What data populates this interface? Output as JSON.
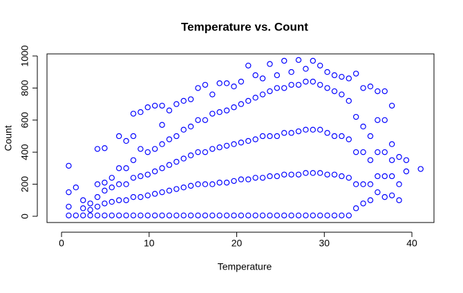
{
  "chart_data": {
    "type": "scatter",
    "title": "Temperature vs. Count",
    "xlabel": "Temperature",
    "ylabel": "Count",
    "color": "#0000ff",
    "xlim": [
      -1.66,
      42.52
    ],
    "ylim": [
      -39,
      1013
    ],
    "xticks": [
      0,
      10,
      20,
      30,
      40
    ],
    "yticks": [
      0,
      200,
      400,
      600,
      800,
      1000
    ],
    "x": [
      0.82,
      0.82,
      0.82,
      0.82,
      1.64,
      1.64,
      2.46,
      2.46,
      2.46,
      3.28,
      3.28,
      3.28,
      4.1,
      4.1,
      4.1,
      4.1,
      4.1,
      4.92,
      4.92,
      4.92,
      4.92,
      4.92,
      5.74,
      5.74,
      5.74,
      5.74,
      6.56,
      6.56,
      6.56,
      6.56,
      6.56,
      7.38,
      7.38,
      7.38,
      7.38,
      7.38,
      8.2,
      8.2,
      8.2,
      8.2,
      8.2,
      8.2,
      9.02,
      9.02,
      9.02,
      9.02,
      9.02,
      9.84,
      9.84,
      9.84,
      9.84,
      9.84,
      10.66,
      10.66,
      10.66,
      10.66,
      10.66,
      11.48,
      11.48,
      11.48,
      11.48,
      11.48,
      11.48,
      12.3,
      12.3,
      12.3,
      12.3,
      12.3,
      13.12,
      13.12,
      13.12,
      13.12,
      13.12,
      13.94,
      13.94,
      13.94,
      13.94,
      13.94,
      14.76,
      14.76,
      14.76,
      14.76,
      14.76,
      15.58,
      15.58,
      15.58,
      15.58,
      15.58,
      16.4,
      16.4,
      16.4,
      16.4,
      16.4,
      17.22,
      17.22,
      17.22,
      17.22,
      17.22,
      18.04,
      18.04,
      18.04,
      18.04,
      18.04,
      18.86,
      18.86,
      18.86,
      18.86,
      18.86,
      19.68,
      19.68,
      19.68,
      19.68,
      19.68,
      20.5,
      20.5,
      20.5,
      20.5,
      20.5,
      21.32,
      21.32,
      21.32,
      21.32,
      21.32,
      22.14,
      22.14,
      22.14,
      22.14,
      22.14,
      22.96,
      22.96,
      22.96,
      22.96,
      22.96,
      23.78,
      23.78,
      23.78,
      23.78,
      23.78,
      24.6,
      24.6,
      24.6,
      24.6,
      24.6,
      25.42,
      25.42,
      25.42,
      25.42,
      25.42,
      26.24,
      26.24,
      26.24,
      26.24,
      26.24,
      27.06,
      27.06,
      27.06,
      27.06,
      27.06,
      27.88,
      27.88,
      27.88,
      27.88,
      27.88,
      28.7,
      28.7,
      28.7,
      28.7,
      28.7,
      29.52,
      29.52,
      29.52,
      29.52,
      29.52,
      30.34,
      30.34,
      30.34,
      30.34,
      30.34,
      31.16,
      31.16,
      31.16,
      31.16,
      31.16,
      31.98,
      31.98,
      31.98,
      31.98,
      31.98,
      32.8,
      32.8,
      32.8,
      32.8,
      32.8,
      33.62,
      33.62,
      33.62,
      33.62,
      33.62,
      34.44,
      34.44,
      34.44,
      34.44,
      34.44,
      35.26,
      35.26,
      35.26,
      35.26,
      35.26,
      36.08,
      36.08,
      36.08,
      36.08,
      36.08,
      36.9,
      36.9,
      36.9,
      36.9,
      36.9,
      37.72,
      37.72,
      37.72,
      37.72,
      37.72,
      38.54,
      38.54,
      38.54,
      39.36,
      39.36,
      41
    ],
    "y": [
      5,
      60,
      150,
      315,
      5,
      180,
      5,
      50,
      100,
      5,
      40,
      80,
      5,
      60,
      120,
      200,
      420,
      5,
      80,
      160,
      210,
      425,
      5,
      90,
      180,
      240,
      5,
      100,
      200,
      300,
      500,
      5,
      100,
      200,
      300,
      470,
      5,
      120,
      240,
      350,
      500,
      640,
      5,
      120,
      250,
      420,
      650,
      5,
      130,
      260,
      400,
      680,
      5,
      140,
      280,
      420,
      690,
      5,
      150,
      300,
      450,
      570,
      690,
      5,
      160,
      320,
      480,
      660,
      5,
      170,
      340,
      500,
      700,
      5,
      180,
      360,
      540,
      720,
      5,
      190,
      380,
      560,
      730,
      5,
      200,
      400,
      600,
      800,
      5,
      200,
      400,
      600,
      820,
      5,
      200,
      420,
      640,
      760,
      5,
      210,
      430,
      650,
      830,
      5,
      210,
      440,
      660,
      830,
      5,
      220,
      450,
      680,
      810,
      5,
      230,
      460,
      700,
      840,
      5,
      230,
      470,
      720,
      940,
      5,
      240,
      480,
      740,
      880,
      5,
      240,
      500,
      760,
      860,
      5,
      250,
      500,
      780,
      950,
      5,
      250,
      500,
      800,
      880,
      5,
      260,
      520,
      800,
      970,
      5,
      260,
      520,
      820,
      900,
      5,
      260,
      530,
      820,
      975,
      5,
      270,
      540,
      840,
      920,
      5,
      270,
      540,
      840,
      970,
      5,
      270,
      540,
      820,
      940,
      5,
      260,
      520,
      800,
      900,
      5,
      260,
      500,
      780,
      880,
      5,
      250,
      500,
      760,
      870,
      5,
      240,
      480,
      720,
      860,
      50,
      200,
      400,
      620,
      890,
      80,
      200,
      400,
      560,
      800,
      100,
      200,
      350,
      500,
      810,
      150,
      250,
      400,
      600,
      780,
      120,
      250,
      400,
      600,
      780,
      130,
      250,
      350,
      450,
      690,
      100,
      200,
      370,
      280,
      350,
      295
    ]
  }
}
